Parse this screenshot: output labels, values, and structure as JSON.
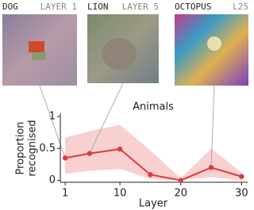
{
  "panels": [
    {
      "animal": "DOG",
      "layer": "LAYER 1"
    },
    {
      "animal": "LION",
      "layer": "LAYER 5"
    },
    {
      "animal": "OCTOPUS",
      "layer": "L25"
    }
  ],
  "chart_data": {
    "type": "line",
    "title": "Animals",
    "xlabel": "Layer",
    "ylabel_lines": [
      "Proportion",
      "recognised"
    ],
    "x": [
      1,
      5,
      10,
      15,
      20,
      25,
      30
    ],
    "series": [
      {
        "color": "#e0393b",
        "values": [
          0.35,
          0.42,
          0.49,
          0.09,
          0.0,
          0.2,
          0.06
        ]
      }
    ],
    "band": {
      "color": "#f9d0d0",
      "upper": [
        0.67,
        0.77,
        0.87,
        0.47,
        0.03,
        0.5,
        0.12
      ],
      "lower": [
        0.1,
        0.15,
        0.18,
        0.02,
        0.0,
        0.05,
        0.0
      ]
    },
    "xlim": [
      0.2,
      31
    ],
    "ylim": [
      -0.03,
      1.05
    ],
    "xticks": [
      1,
      10,
      20,
      30
    ],
    "yticks": [
      0,
      0.5,
      1
    ]
  }
}
